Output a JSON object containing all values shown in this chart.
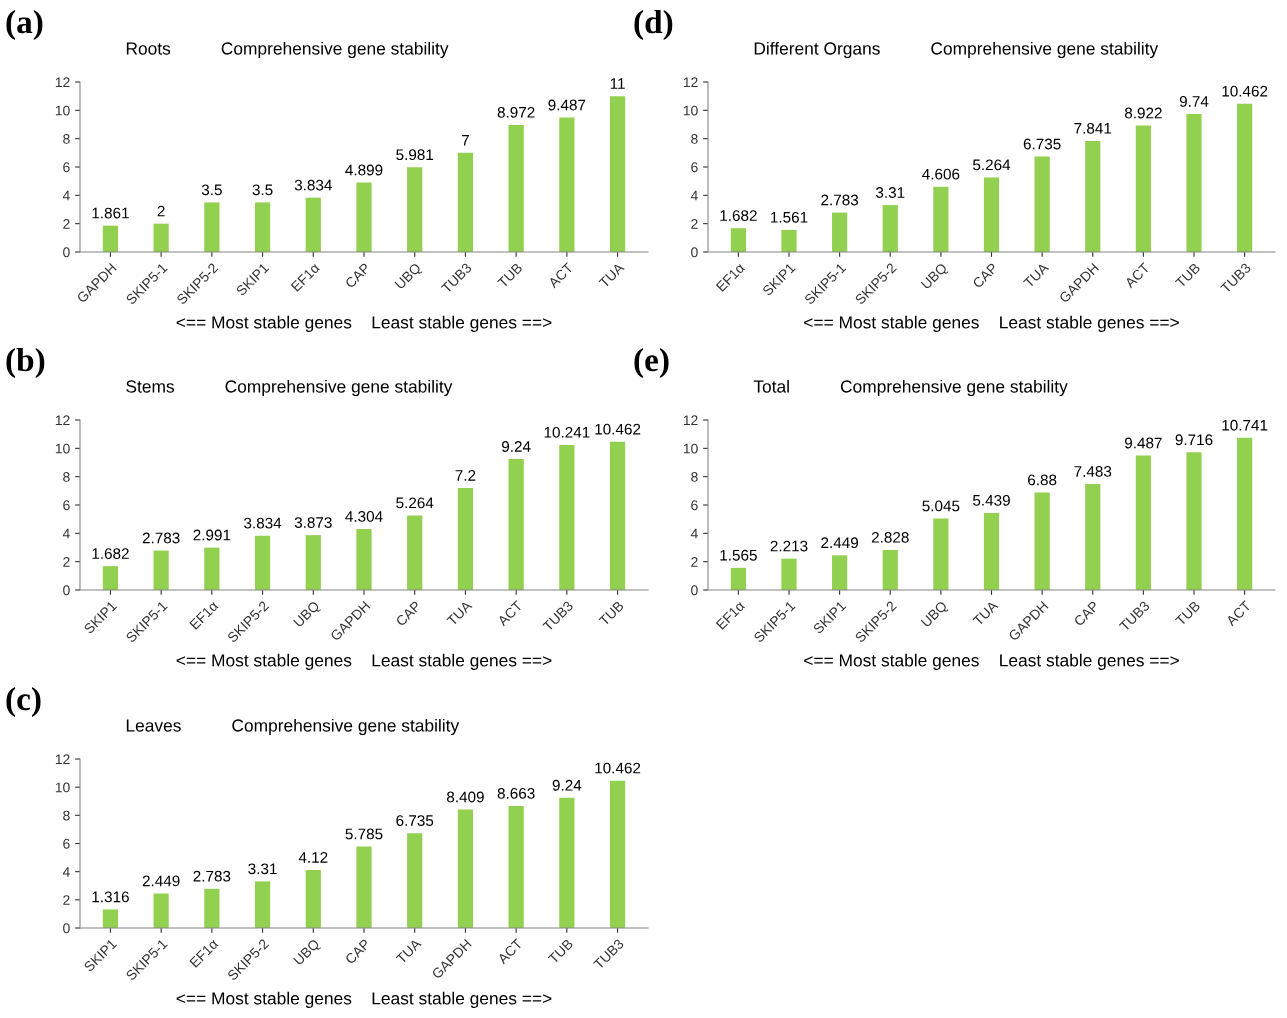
{
  "chart_data": [
    {
      "type": "bar",
      "annotations": [
        "(a)"
      ],
      "title": "Roots",
      "subtitle": "Comprehensive gene stability",
      "xlabel": "<== Most stable genes    Least stable genes ==>",
      "categories": [
        "GAPDH",
        "SKIP5-1",
        "SKIP5-2",
        "SKIP1",
        "EF1α",
        "CAP",
        "UBQ",
        "TUB3",
        "TUB",
        "ACT",
        "TUA"
      ],
      "values": [
        1.861,
        2,
        3.5,
        3.5,
        3.834,
        4.899,
        5.981,
        7,
        8.972,
        9.487,
        11
      ],
      "color": "#92d050",
      "ylim": [
        0,
        12
      ],
      "yticks": [
        0,
        2,
        4,
        6,
        8,
        10,
        12
      ],
      "data_labels": true,
      "grid": false,
      "legend": false
    },
    {
      "type": "bar",
      "annotations": [
        "(b)"
      ],
      "title": "Stems",
      "subtitle": "Comprehensive gene stability",
      "xlabel": "<== Most stable genes    Least stable genes ==>",
      "categories": [
        "SKIP1",
        "SKIP5-1",
        "EF1α",
        "SKIP5-2",
        "UBQ",
        "GAPDH",
        "CAP",
        "TUA",
        "ACT",
        "TUB3",
        "TUB"
      ],
      "values": [
        1.682,
        2.783,
        2.991,
        3.834,
        3.873,
        4.304,
        5.264,
        7.2,
        9.24,
        10.241,
        10.462
      ],
      "color": "#92d050",
      "ylim": [
        0,
        12
      ],
      "yticks": [
        0,
        2,
        4,
        6,
        8,
        10,
        12
      ],
      "data_labels": true,
      "grid": false,
      "legend": false
    },
    {
      "type": "bar",
      "annotations": [
        "(c)"
      ],
      "title": "Leaves",
      "subtitle": "Comprehensive gene stability",
      "xlabel": "<== Most stable genes    Least stable genes ==>",
      "categories": [
        "SKIP1",
        "SKIP5-1",
        "EF1α",
        "SKIP5-2",
        "UBQ",
        "CAP",
        "TUA",
        "GAPDH",
        "ACT",
        "TUB",
        "TUB3"
      ],
      "values": [
        1.316,
        2.449,
        2.783,
        3.31,
        4.12,
        5.785,
        6.735,
        8.409,
        8.663,
        9.24,
        10.462
      ],
      "color": "#92d050",
      "ylim": [
        0,
        12
      ],
      "yticks": [
        0,
        2,
        4,
        6,
        8,
        10,
        12
      ],
      "data_labels": true,
      "grid": false,
      "legend": false
    },
    {
      "type": "bar",
      "annotations": [
        "(d)"
      ],
      "title": "Different Organs",
      "subtitle": "Comprehensive gene stability",
      "xlabel": "<== Most stable genes    Least stable genes ==>",
      "categories": [
        "EF1α",
        "SKIP1",
        "SKIP5-1",
        "SKIP5-2",
        "UBQ",
        "CAP",
        "TUA",
        "GAPDH",
        "ACT",
        "TUB",
        "TUB3"
      ],
      "values": [
        1.682,
        1.561,
        2.783,
        3.31,
        4.606,
        5.264,
        6.735,
        7.841,
        8.922,
        9.74,
        10.462
      ],
      "color": "#92d050",
      "ylim": [
        0,
        12
      ],
      "yticks": [
        0,
        2,
        4,
        6,
        8,
        10,
        12
      ],
      "data_labels": true,
      "grid": false,
      "legend": false
    },
    {
      "type": "bar",
      "annotations": [
        "(e)"
      ],
      "title": "Total",
      "subtitle": "Comprehensive gene stability",
      "xlabel": "<== Most stable genes    Least stable genes ==>",
      "categories": [
        "EF1α",
        "SKIP5-1",
        "SKIP1",
        "SKIP5-2",
        "UBQ",
        "TUA",
        "GAPDH",
        "CAP",
        "TUB3",
        "TUB",
        "ACT"
      ],
      "values": [
        1.565,
        2.213,
        2.449,
        2.828,
        5.045,
        5.439,
        6.88,
        7.483,
        9.487,
        9.716,
        10.741
      ],
      "color": "#92d050",
      "ylim": [
        0,
        12
      ],
      "yticks": [
        0,
        2,
        4,
        6,
        8,
        10,
        12
      ],
      "data_labels": true,
      "grid": false,
      "legend": false
    }
  ]
}
